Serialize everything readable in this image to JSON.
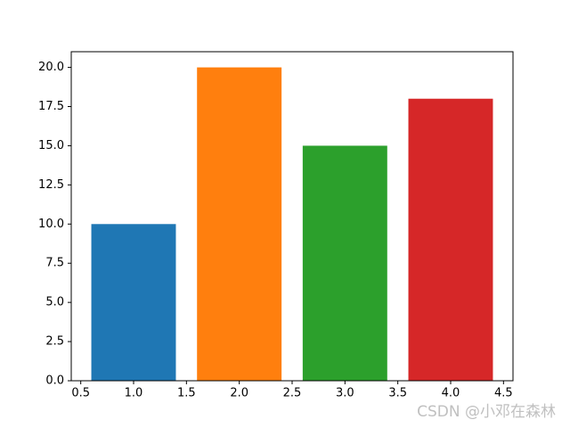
{
  "chart_data": {
    "type": "bar",
    "x": [
      1,
      2,
      3,
      4
    ],
    "values": [
      10,
      20,
      15,
      18
    ],
    "bar_width": 0.8,
    "colors": [
      "#1f77b4",
      "#ff7f0e",
      "#2ca02c",
      "#d62728"
    ],
    "xlim": [
      0.41,
      4.59
    ],
    "xticks": [
      0.5,
      {
        "value": 1,
        "label": "1.0"
      },
      1.5,
      {
        "value": 2,
        "label": "2.0"
      },
      2.5,
      {
        "value": 3,
        "label": "3.0"
      },
      3.5,
      {
        "value": 4,
        "label": "4.0"
      },
      4.5
    ],
    "ylim": [
      0,
      21
    ],
    "yticks": [
      {
        "value": 0,
        "label": "0.0"
      },
      2.5,
      {
        "value": 5,
        "label": "5.0"
      },
      7.5,
      {
        "value": 10,
        "label": "10.0"
      },
      12.5,
      {
        "value": 15,
        "label": "15.0"
      },
      17.5,
      {
        "value": 20,
        "label": "20.0"
      }
    ],
    "grid": false,
    "watermark": "CSDN @小邓在森林"
  }
}
